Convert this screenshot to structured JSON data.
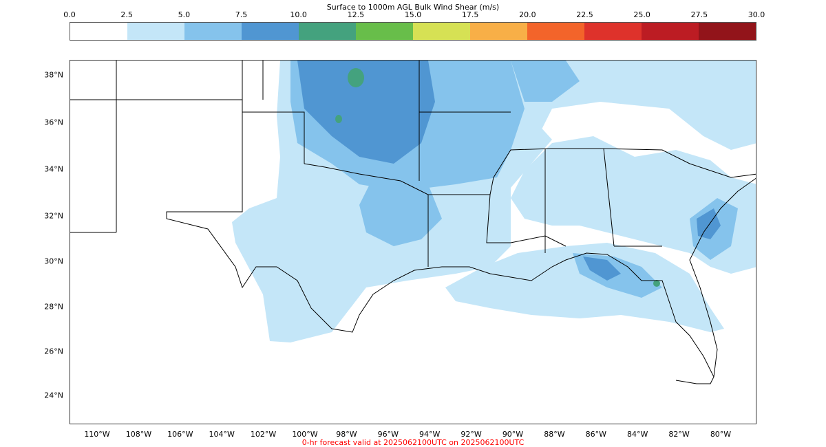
{
  "title": "Surface to 1000m AGL Bulk Wind Shear (m/s)",
  "colorbar": {
    "ticks": [
      "0.0",
      "2.5",
      "5.0",
      "7.5",
      "10.0",
      "12.5",
      "15.0",
      "17.5",
      "20.0",
      "22.5",
      "25.0",
      "27.5",
      "30.0"
    ],
    "colors": [
      "#ffffff",
      "#c4e6f8",
      "#85c3ec",
      "#5096d2",
      "#44a27e",
      "#68be4a",
      "#d6e154",
      "#f8af47",
      "#f3642a",
      "#de322b",
      "#bc1c23",
      "#92141a"
    ]
  },
  "lat_labels": [
    "38°N",
    "36°N",
    "34°N",
    "32°N",
    "30°N",
    "28°N",
    "26°N",
    "24°N"
  ],
  "lon_labels": [
    "110°W",
    "108°W",
    "106°W",
    "104°W",
    "102°W",
    "100°W",
    "98°W",
    "96°W",
    "94°W",
    "92°W",
    "90°W",
    "88°W",
    "86°W",
    "84°W",
    "82°W",
    "80°W"
  ],
  "footer": "0-hr forecast valid at 2025062100UTC on 2025062100UTC"
}
